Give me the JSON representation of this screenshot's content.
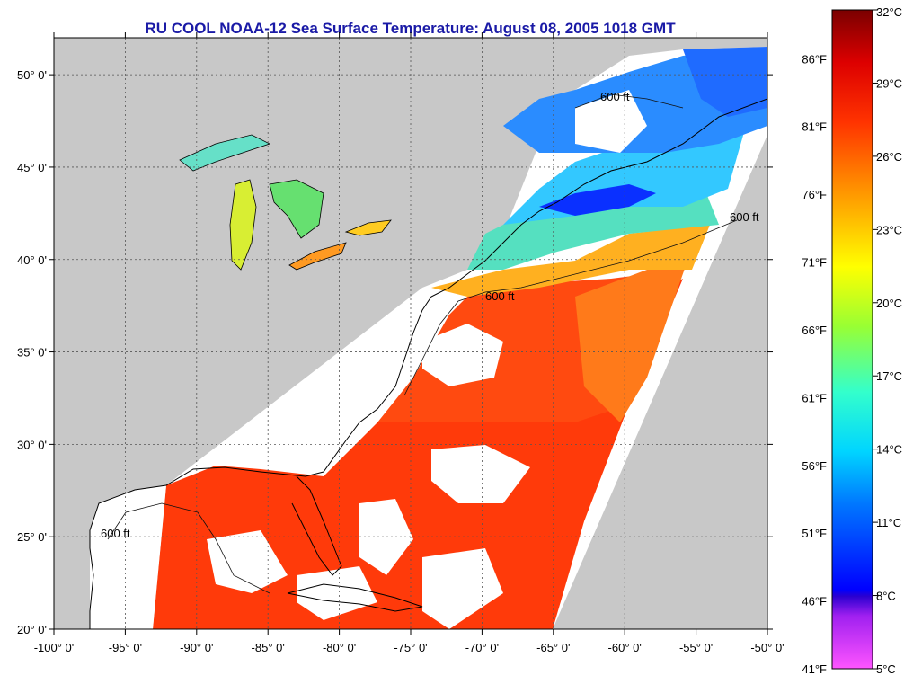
{
  "title": "RU COOL  NOAA-12  Sea Surface Temperature:  August 08, 2005 1018 GMT",
  "map": {
    "lon_range": [
      -100,
      -50
    ],
    "lat_range": [
      20,
      52
    ],
    "lon_ticks": [
      {
        "value": -100,
        "label": "-100° 0'"
      },
      {
        "value": -95,
        "label": "-95° 0'"
      },
      {
        "value": -90,
        "label": "-90° 0'"
      },
      {
        "value": -85,
        "label": "-85° 0'"
      },
      {
        "value": -80,
        "label": "-80° 0'"
      },
      {
        "value": -75,
        "label": "-75° 0'"
      },
      {
        "value": -70,
        "label": "-70° 0'"
      },
      {
        "value": -65,
        "label": "-65° 0'"
      },
      {
        "value": -60,
        "label": "-60° 0'"
      },
      {
        "value": -55,
        "label": "-55° 0'"
      },
      {
        "value": -50,
        "label": "-50° 0'"
      }
    ],
    "lat_ticks": [
      {
        "value": 20,
        "label": "20° 0'"
      },
      {
        "value": 25,
        "label": "25° 0'"
      },
      {
        "value": 30,
        "label": "30° 0'"
      },
      {
        "value": 35,
        "label": "35° 0'"
      },
      {
        "value": 40,
        "label": "40° 0'"
      },
      {
        "value": 45,
        "label": "45° 0'"
      },
      {
        "value": 50,
        "label": "50° 0'"
      }
    ],
    "contour_label": "600 ft",
    "colors": {
      "land": "#c8c8c8",
      "no_data": "#ffffff",
      "coast": "#000000",
      "grid": "#555555"
    }
  },
  "colorbar": {
    "celsius_labels": [
      {
        "value": 32,
        "label": "32°C"
      },
      {
        "value": 29,
        "label": "29°C"
      },
      {
        "value": 26,
        "label": "26°C"
      },
      {
        "value": 23,
        "label": "23°C"
      },
      {
        "value": 20,
        "label": "20°C"
      },
      {
        "value": 17,
        "label": "17°C"
      },
      {
        "value": 14,
        "label": "14°C"
      },
      {
        "value": 11,
        "label": "11°C"
      },
      {
        "value": 8,
        "label": "8°C"
      },
      {
        "value": 5,
        "label": "5°C"
      }
    ],
    "fahrenheit_labels": [
      {
        "value": 86,
        "label": "86°F"
      },
      {
        "value": 81,
        "label": "81°F"
      },
      {
        "value": 76,
        "label": "76°F"
      },
      {
        "value": 71,
        "label": "71°F"
      },
      {
        "value": 66,
        "label": "66°F"
      },
      {
        "value": 61,
        "label": "61°F"
      },
      {
        "value": 56,
        "label": "56°F"
      },
      {
        "value": 51,
        "label": "51°F"
      },
      {
        "value": 46,
        "label": "46°F"
      },
      {
        "value": 41,
        "label": "41°F"
      }
    ],
    "range_c": [
      5,
      32
    ],
    "stops": [
      "#ff55ff",
      "#8a2be2",
      "#0000ff",
      "#00aaff",
      "#00e5e5",
      "#66ff66",
      "#ffff00",
      "#ff9900",
      "#ff2200",
      "#e00000",
      "#7a0000"
    ]
  }
}
